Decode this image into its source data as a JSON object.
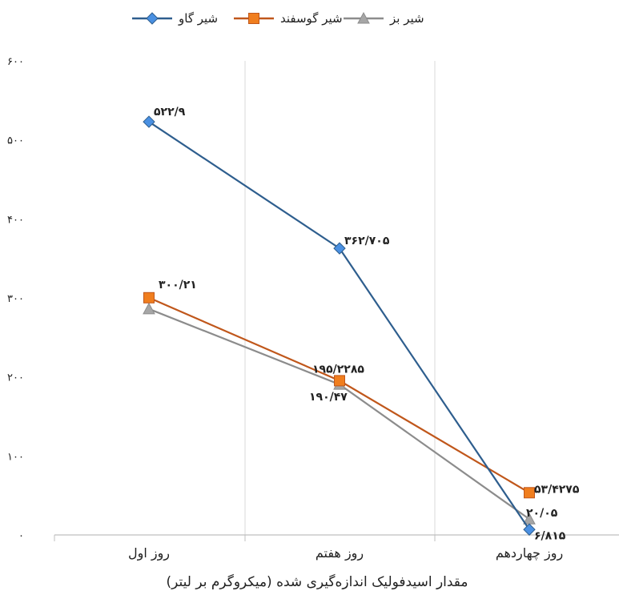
{
  "chart_data": {
    "type": "line",
    "xlabel": "مقدار اسیدفولیک اندازه‌گیری شده (میکروگرم بر لیتر)",
    "ylabel": "",
    "ylim": [
      0,
      600
    ],
    "yticks": [
      0,
      100,
      200,
      300,
      400,
      500,
      600
    ],
    "ytick_labels": [
      "۰",
      "۱۰۰",
      "۲۰۰",
      "۳۰۰",
      "۴۰۰",
      "۵۰۰",
      "۶۰۰"
    ],
    "categories": [
      "روز اول",
      "روز هفتم",
      "روز چهاردهم"
    ],
    "grid": "vertical",
    "legend_position": "top",
    "series": [
      {
        "name": "شیر گاو",
        "color": "#2E5E8E",
        "marker_color": "#4A90E2",
        "marker": "diamond",
        "values": [
          522.9,
          362.705,
          6.815
        ],
        "value_labels": [
          "۵۲۲/۹",
          "۳۶۲/۷۰۵",
          "۶/۸۱۵"
        ]
      },
      {
        "name": "شیر گوسفند",
        "color": "#C0571B",
        "marker_color": "#F07E1E",
        "marker": "square",
        "values": [
          300.21,
          195.2285,
          53.4275
        ],
        "value_labels": [
          "۳۰۰/۲۱",
          "۱۹۵/۲۲۸۵",
          "۵۳/۴۲۷۵"
        ]
      },
      {
        "name": "شیر بز",
        "color": "#8C8C8C",
        "marker_color": "#A6A6A6",
        "marker": "triangle",
        "values": [
          286,
          190.47,
          20.05
        ],
        "value_labels": [
          "",
          "۱۹۰/۴۷",
          "۲۰/۰۵"
        ]
      }
    ]
  }
}
